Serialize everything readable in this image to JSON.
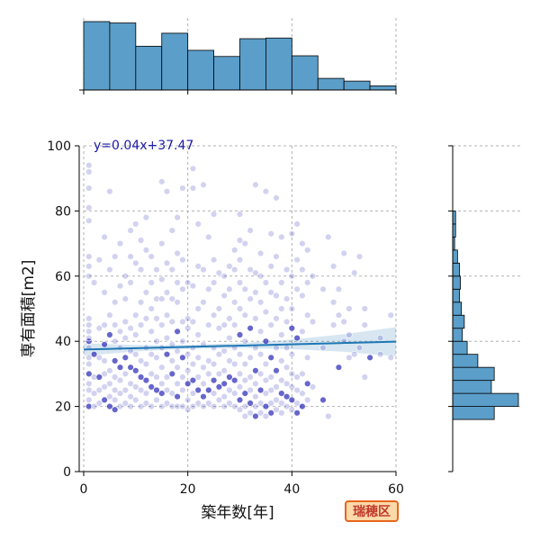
{
  "chart_data": {
    "type": "scatter",
    "xlabel": "築年数[年]",
    "ylabel": "専有面積[m2]",
    "xlim": [
      0,
      60
    ],
    "ylim": [
      0,
      100
    ],
    "xticks": [
      0,
      20,
      40,
      60
    ],
    "yticks": [
      0,
      20,
      40,
      60,
      80,
      100
    ],
    "grid": true,
    "regression": {
      "label": "y=0.04x+37.47",
      "slope": 0.04,
      "intercept": 37.47,
      "color": "#1f77b4"
    },
    "point_color": "#3333bb",
    "hist_color": "#5b9ec9",
    "badge": "瑞穂区",
    "x_hist": {
      "bin_edges": [
        0,
        5,
        10,
        15,
        20,
        25,
        30,
        35,
        40,
        45,
        50,
        55,
        60
      ],
      "counts": [
        100,
        98,
        64,
        83,
        58,
        49,
        75,
        76,
        50,
        17,
        13,
        6
      ]
    },
    "y_hist": {
      "bin_edges": [
        16,
        20,
        24,
        28,
        32,
        36,
        40,
        44,
        48,
        52,
        56,
        60,
        64,
        68,
        72,
        76,
        80
      ],
      "counts": [
        43,
        68,
        40,
        43,
        26,
        15,
        10,
        12,
        9,
        7,
        8,
        7,
        5,
        2,
        3,
        3
      ]
    },
    "points": [
      [
        1,
        20
      ],
      [
        1,
        22
      ],
      [
        1,
        25
      ],
      [
        1,
        27
      ],
      [
        1,
        30
      ],
      [
        1,
        33
      ],
      [
        1,
        35
      ],
      [
        1,
        38
      ],
      [
        1,
        40
      ],
      [
        1,
        41
      ],
      [
        1,
        43
      ],
      [
        1,
        45
      ],
      [
        1,
        47
      ],
      [
        1,
        60
      ],
      [
        1,
        63
      ],
      [
        1,
        66
      ],
      [
        1,
        77
      ],
      [
        1,
        81
      ],
      [
        1,
        87
      ],
      [
        1,
        92
      ],
      [
        1,
        94
      ],
      [
        2,
        20
      ],
      [
        2,
        24
      ],
      [
        2,
        29
      ],
      [
        2,
        36
      ],
      [
        2,
        58
      ],
      [
        3,
        21
      ],
      [
        3,
        25
      ],
      [
        3,
        29
      ],
      [
        3,
        35
      ],
      [
        3,
        44
      ],
      [
        3,
        65
      ],
      [
        4,
        22
      ],
      [
        4,
        26
      ],
      [
        4,
        30
      ],
      [
        4,
        34
      ],
      [
        4,
        39
      ],
      [
        4,
        45
      ],
      [
        4,
        55
      ],
      [
        4,
        72
      ],
      [
        5,
        20
      ],
      [
        5,
        23
      ],
      [
        5,
        27
      ],
      [
        5,
        31
      ],
      [
        5,
        42
      ],
      [
        5,
        48
      ],
      [
        5,
        62
      ],
      [
        5,
        86
      ],
      [
        6,
        19
      ],
      [
        6,
        22
      ],
      [
        6,
        25
      ],
      [
        6,
        29
      ],
      [
        6,
        34
      ],
      [
        6,
        40
      ],
      [
        6,
        45
      ],
      [
        6,
        52
      ],
      [
        6,
        66
      ],
      [
        7,
        20
      ],
      [
        7,
        24
      ],
      [
        7,
        28
      ],
      [
        7,
        32
      ],
      [
        7,
        38
      ],
      [
        7,
        43
      ],
      [
        7,
        57
      ],
      [
        7,
        70
      ],
      [
        8,
        21
      ],
      [
        8,
        25
      ],
      [
        8,
        30
      ],
      [
        8,
        35
      ],
      [
        8,
        41
      ],
      [
        8,
        46
      ],
      [
        8,
        53
      ],
      [
        8,
        60
      ],
      [
        9,
        20
      ],
      [
        9,
        23
      ],
      [
        9,
        27
      ],
      [
        9,
        32
      ],
      [
        9,
        37
      ],
      [
        9,
        44
      ],
      [
        9,
        58
      ],
      [
        9,
        66
      ],
      [
        9,
        74
      ],
      [
        10,
        22
      ],
      [
        10,
        26
      ],
      [
        10,
        31
      ],
      [
        10,
        36
      ],
      [
        10,
        42
      ],
      [
        10,
        48
      ],
      [
        10,
        64
      ],
      [
        10,
        76
      ],
      [
        11,
        20
      ],
      [
        11,
        25
      ],
      [
        11,
        29
      ],
      [
        11,
        34
      ],
      [
        11,
        45
      ],
      [
        11,
        52
      ],
      [
        11,
        62
      ],
      [
        11,
        71
      ],
      [
        12,
        21
      ],
      [
        12,
        24
      ],
      [
        12,
        28
      ],
      [
        12,
        33
      ],
      [
        12,
        38
      ],
      [
        12,
        47
      ],
      [
        12,
        55
      ],
      [
        12,
        68
      ],
      [
        12,
        78
      ],
      [
        13,
        20
      ],
      [
        13,
        26
      ],
      [
        13,
        30
      ],
      [
        13,
        36
      ],
      [
        13,
        43
      ],
      [
        13,
        50
      ],
      [
        13,
        58
      ],
      [
        13,
        66
      ],
      [
        14,
        22
      ],
      [
        14,
        25
      ],
      [
        14,
        29
      ],
      [
        14,
        35
      ],
      [
        14,
        40
      ],
      [
        14,
        47
      ],
      [
        14,
        53
      ],
      [
        14,
        62
      ],
      [
        15,
        20
      ],
      [
        15,
        24
      ],
      [
        15,
        27
      ],
      [
        15,
        32
      ],
      [
        15,
        38
      ],
      [
        15,
        45
      ],
      [
        15,
        53
      ],
      [
        15,
        59
      ],
      [
        15,
        70
      ],
      [
        15,
        89
      ],
      [
        16,
        21
      ],
      [
        16,
        25
      ],
      [
        16,
        29
      ],
      [
        16,
        36
      ],
      [
        16,
        41
      ],
      [
        16,
        48
      ],
      [
        16,
        55
      ],
      [
        16,
        64
      ],
      [
        16,
        86
      ],
      [
        17,
        20
      ],
      [
        17,
        24
      ],
      [
        17,
        30
      ],
      [
        17,
        34
      ],
      [
        17,
        39
      ],
      [
        17,
        46
      ],
      [
        17,
        53
      ],
      [
        17,
        62
      ],
      [
        17,
        74
      ],
      [
        18,
        20
      ],
      [
        18,
        23
      ],
      [
        18,
        27
      ],
      [
        18,
        32
      ],
      [
        18,
        37
      ],
      [
        18,
        43
      ],
      [
        18,
        52
      ],
      [
        18,
        58
      ],
      [
        18,
        67
      ],
      [
        18,
        78
      ],
      [
        19,
        20
      ],
      [
        19,
        25
      ],
      [
        19,
        29
      ],
      [
        19,
        35
      ],
      [
        19,
        40
      ],
      [
        19,
        46
      ],
      [
        19,
        56
      ],
      [
        19,
        65
      ],
      [
        19,
        87
      ],
      [
        20,
        19
      ],
      [
        20,
        22
      ],
      [
        20,
        27
      ],
      [
        20,
        31
      ],
      [
        20,
        36
      ],
      [
        20,
        44
      ],
      [
        20,
        47
      ],
      [
        20,
        58
      ],
      [
        21,
        20
      ],
      [
        21,
        24
      ],
      [
        21,
        28
      ],
      [
        21,
        33
      ],
      [
        21,
        38
      ],
      [
        21,
        46
      ],
      [
        21,
        57
      ],
      [
        21,
        87
      ],
      [
        21,
        93
      ],
      [
        22,
        21
      ],
      [
        22,
        25
      ],
      [
        22,
        29
      ],
      [
        22,
        35
      ],
      [
        22,
        42
      ],
      [
        22,
        50
      ],
      [
        22,
        63
      ],
      [
        22,
        76
      ],
      [
        23,
        20
      ],
      [
        23,
        23
      ],
      [
        23,
        27
      ],
      [
        23,
        32
      ],
      [
        23,
        39
      ],
      [
        23,
        52
      ],
      [
        23,
        62
      ],
      [
        23,
        88
      ],
      [
        24,
        21
      ],
      [
        24,
        25
      ],
      [
        24,
        30
      ],
      [
        24,
        34
      ],
      [
        24,
        45
      ],
      [
        24,
        56
      ],
      [
        24,
        72
      ],
      [
        25,
        20
      ],
      [
        25,
        24
      ],
      [
        25,
        28
      ],
      [
        25,
        33
      ],
      [
        25,
        38
      ],
      [
        25,
        48
      ],
      [
        25,
        58
      ],
      [
        25,
        65
      ],
      [
        25,
        79
      ],
      [
        26,
        22
      ],
      [
        26,
        26
      ],
      [
        26,
        30
      ],
      [
        26,
        36
      ],
      [
        26,
        44
      ],
      [
        26,
        50
      ],
      [
        26,
        61
      ],
      [
        27,
        20
      ],
      [
        27,
        23
      ],
      [
        27,
        27
      ],
      [
        27,
        31
      ],
      [
        27,
        37
      ],
      [
        27,
        45
      ],
      [
        27,
        54
      ],
      [
        27,
        60
      ],
      [
        28,
        21
      ],
      [
        28,
        25
      ],
      [
        28,
        29
      ],
      [
        28,
        34
      ],
      [
        28,
        41
      ],
      [
        28,
        47
      ],
      [
        28,
        56
      ],
      [
        28,
        63
      ],
      [
        29,
        20
      ],
      [
        29,
        24
      ],
      [
        29,
        28
      ],
      [
        29,
        33
      ],
      [
        29,
        38
      ],
      [
        29,
        45
      ],
      [
        29,
        52
      ],
      [
        29,
        62
      ],
      [
        29,
        68
      ],
      [
        30,
        19
      ],
      [
        30,
        22
      ],
      [
        30,
        26
      ],
      [
        30,
        30
      ],
      [
        30,
        36
      ],
      [
        30,
        42
      ],
      [
        30,
        50
      ],
      [
        30,
        58
      ],
      [
        30,
        65
      ],
      [
        30,
        71
      ],
      [
        30,
        79
      ],
      [
        31,
        17
      ],
      [
        31,
        20
      ],
      [
        31,
        24
      ],
      [
        31,
        28
      ],
      [
        31,
        33
      ],
      [
        31,
        40
      ],
      [
        31,
        48
      ],
      [
        31,
        56
      ],
      [
        31,
        70
      ],
      [
        32,
        18
      ],
      [
        32,
        21
      ],
      [
        32,
        25
      ],
      [
        32,
        29
      ],
      [
        32,
        35
      ],
      [
        32,
        44
      ],
      [
        32,
        53
      ],
      [
        32,
        62
      ],
      [
        32,
        74
      ],
      [
        33,
        17
      ],
      [
        33,
        20
      ],
      [
        33,
        23
      ],
      [
        33,
        27
      ],
      [
        33,
        31
      ],
      [
        33,
        38
      ],
      [
        33,
        47
      ],
      [
        33,
        55
      ],
      [
        33,
        61
      ],
      [
        33,
        88
      ],
      [
        34,
        18
      ],
      [
        34,
        21
      ],
      [
        34,
        25
      ],
      [
        34,
        30
      ],
      [
        34,
        36
      ],
      [
        34,
        43
      ],
      [
        34,
        52
      ],
      [
        34,
        60
      ],
      [
        34,
        67
      ],
      [
        35,
        17
      ],
      [
        35,
        20
      ],
      [
        35,
        24
      ],
      [
        35,
        28
      ],
      [
        35,
        33
      ],
      [
        35,
        40
      ],
      [
        35,
        49
      ],
      [
        35,
        58
      ],
      [
        35,
        86
      ],
      [
        36,
        18
      ],
      [
        36,
        21
      ],
      [
        36,
        25
      ],
      [
        36,
        29
      ],
      [
        36,
        35
      ],
      [
        36,
        45
      ],
      [
        36,
        55
      ],
      [
        36,
        63
      ],
      [
        36,
        73
      ],
      [
        37,
        19
      ],
      [
        37,
        22
      ],
      [
        37,
        26
      ],
      [
        37,
        31
      ],
      [
        37,
        38
      ],
      [
        37,
        47
      ],
      [
        37,
        54
      ],
      [
        37,
        66
      ],
      [
        37,
        84
      ],
      [
        38,
        18
      ],
      [
        38,
        21
      ],
      [
        38,
        24
      ],
      [
        38,
        28
      ],
      [
        38,
        34
      ],
      [
        38,
        42
      ],
      [
        38,
        50
      ],
      [
        38,
        58
      ],
      [
        38,
        72
      ],
      [
        39,
        20
      ],
      [
        39,
        23
      ],
      [
        39,
        27
      ],
      [
        39,
        32
      ],
      [
        39,
        38
      ],
      [
        39,
        46
      ],
      [
        39,
        53
      ],
      [
        39,
        62
      ],
      [
        40,
        19
      ],
      [
        40,
        22
      ],
      [
        40,
        26
      ],
      [
        40,
        30
      ],
      [
        40,
        36
      ],
      [
        40,
        44
      ],
      [
        40,
        50
      ],
      [
        40,
        60
      ],
      [
        40,
        73
      ],
      [
        41,
        18
      ],
      [
        41,
        21
      ],
      [
        41,
        25
      ],
      [
        41,
        29
      ],
      [
        41,
        41
      ],
      [
        41,
        56
      ],
      [
        41,
        65
      ],
      [
        41,
        76
      ],
      [
        42,
        20
      ],
      [
        42,
        24
      ],
      [
        42,
        30
      ],
      [
        42,
        43
      ],
      [
        42,
        54
      ],
      [
        42,
        62
      ],
      [
        42,
        70
      ],
      [
        43,
        22
      ],
      [
        43,
        27
      ],
      [
        43,
        35
      ],
      [
        43,
        48
      ],
      [
        43,
        58
      ],
      [
        43,
        68
      ],
      [
        44,
        26
      ],
      [
        44,
        46
      ],
      [
        44,
        60
      ],
      [
        46,
        22
      ],
      [
        46,
        38
      ],
      [
        46,
        56
      ],
      [
        47,
        17
      ],
      [
        47,
        72
      ],
      [
        48,
        45
      ],
      [
        48,
        52
      ],
      [
        48,
        63
      ],
      [
        49,
        32
      ],
      [
        49,
        48
      ],
      [
        49,
        56
      ],
      [
        50,
        40
      ],
      [
        50,
        46
      ],
      [
        50,
        67
      ],
      [
        51,
        35
      ],
      [
        51,
        42
      ],
      [
        51,
        50
      ],
      [
        52,
        36
      ],
      [
        52,
        61
      ],
      [
        53,
        38
      ],
      [
        53,
        66
      ],
      [
        54,
        29
      ],
      [
        54,
        45
      ],
      [
        54,
        50
      ],
      [
        55,
        35
      ],
      [
        57,
        36
      ],
      [
        57,
        41
      ],
      [
        59,
        35
      ],
      [
        59,
        48
      ]
    ]
  }
}
